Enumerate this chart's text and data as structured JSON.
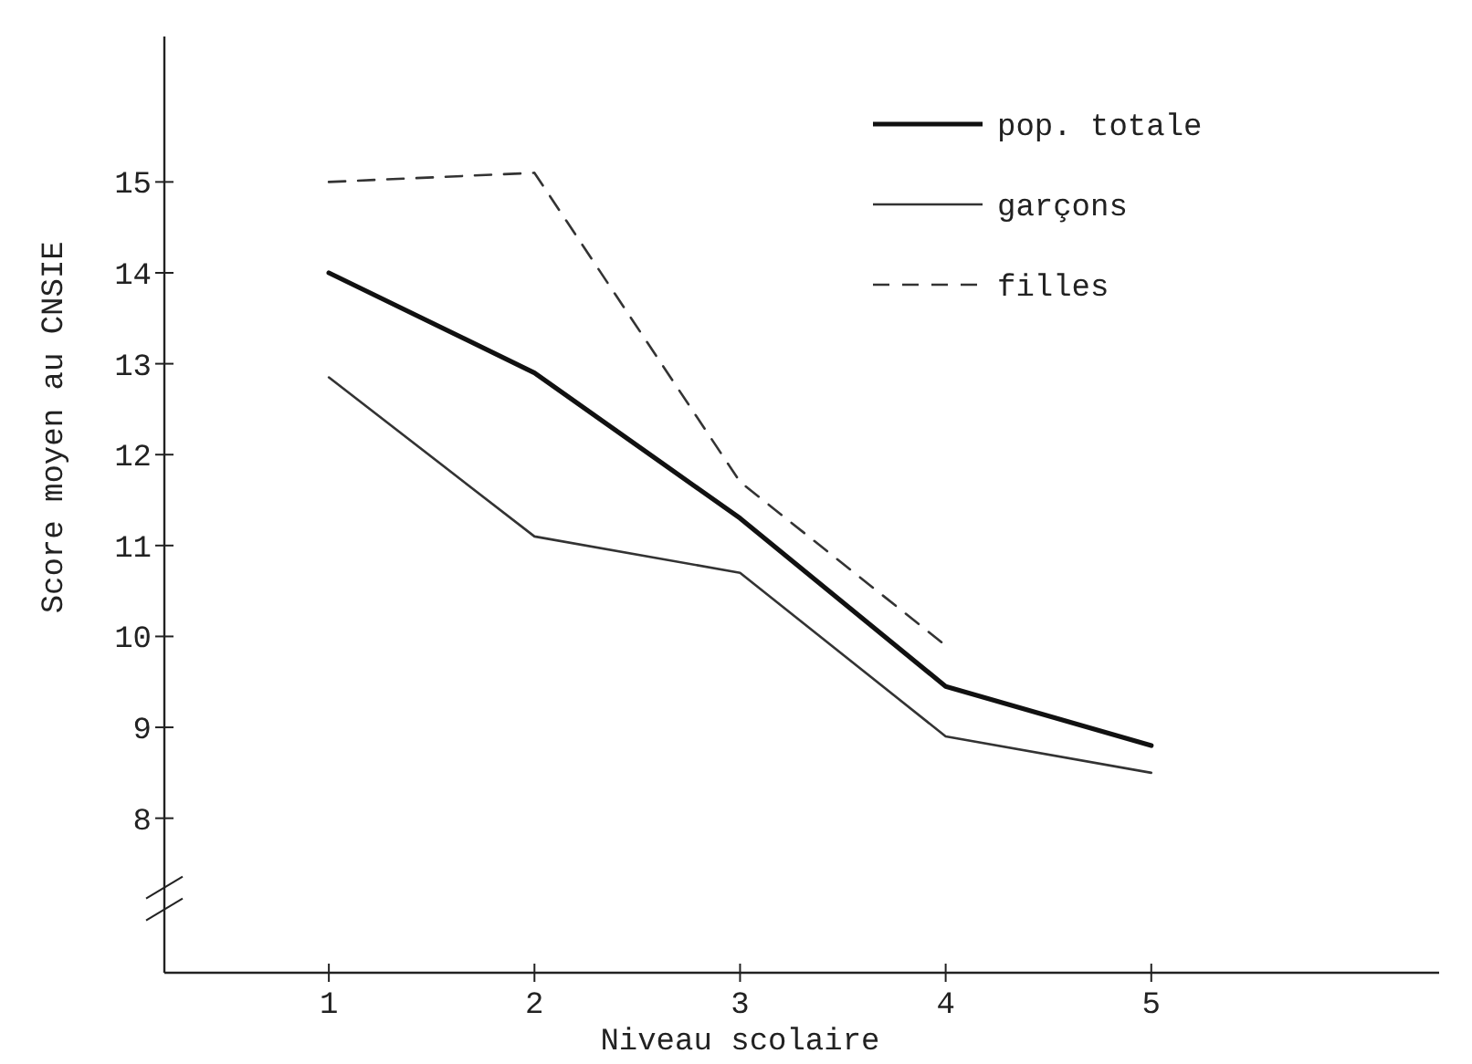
{
  "chart_data": {
    "type": "line",
    "xlabel": "Niveau scolaire",
    "ylabel": "Score moyen au CNSIE",
    "x": [
      1,
      2,
      3,
      4,
      5
    ],
    "xlim": [
      0.2,
      6.4
    ],
    "xticks": [
      1,
      2,
      3,
      4,
      5
    ],
    "ylim": [
      6.3,
      16.6
    ],
    "yticks": [
      8,
      9,
      10,
      11,
      12,
      13,
      14,
      15
    ],
    "legend": "top right",
    "grid": false,
    "marker": "none",
    "series": [
      {
        "name": "pop. totale",
        "color": "#111111",
        "line_style": "solid",
        "values": [
          14.0,
          12.9,
          11.3,
          9.45,
          8.8
        ]
      },
      {
        "name": "garçons",
        "color": "#333333",
        "line_style": "solid",
        "values": [
          12.85,
          11.1,
          10.7,
          8.9,
          8.5
        ]
      },
      {
        "name": "filles",
        "color": "#333333",
        "line_style": "dashed",
        "x": [
          1,
          2,
          3,
          4
        ],
        "values": [
          15.0,
          15.1,
          11.7,
          9.9
        ]
      }
    ]
  }
}
